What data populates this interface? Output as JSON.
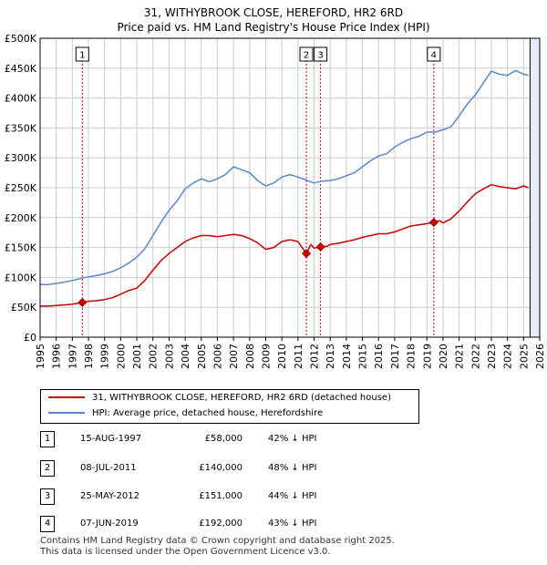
{
  "header": {
    "title_line1": "31, WITHYBROOK CLOSE, HEREFORD, HR2 6RD",
    "title_line2": "Price paid vs. HM Land Registry's House Price Index (HPI)"
  },
  "colors": {
    "property": "#cc0000",
    "hpi": "#5588cc",
    "shade": "#e4ecf7",
    "grid": "#cccccc",
    "marker": "#cc0000"
  },
  "chart_data": {
    "type": "line",
    "title": "31, WITHYBROOK CLOSE, HEREFORD, HR2 6RD",
    "subtitle": "Price paid vs. HM Land Registry's House Price Index (HPI)",
    "xlim": [
      1995,
      2026
    ],
    "ylim": [
      0,
      500000
    ],
    "x_ticks": [
      1995,
      1996,
      1997,
      1998,
      1999,
      2000,
      2001,
      2002,
      2003,
      2004,
      2005,
      2006,
      2007,
      2008,
      2009,
      2010,
      2011,
      2012,
      2013,
      2014,
      2015,
      2016,
      2017,
      2018,
      2019,
      2020,
      2021,
      2022,
      2023,
      2024,
      2025,
      2026
    ],
    "y_ticks": [
      0,
      50000,
      100000,
      150000,
      200000,
      250000,
      300000,
      350000,
      400000,
      450000,
      500000
    ],
    "y_tick_labels": [
      "£0",
      "£50K",
      "£100K",
      "£150K",
      "£200K",
      "£250K",
      "£300K",
      "£350K",
      "£400K",
      "£450K",
      "£500K"
    ],
    "grid": true,
    "future_start": 2025.4,
    "series": [
      {
        "name": "31, WITHYBROOK CLOSE, HEREFORD, HR2 6RD (detached house)",
        "x": [
          1995.0,
          1995.5,
          1996.0,
          1996.5,
          1997.0,
          1997.62,
          1998.0,
          1998.5,
          1999.0,
          1999.5,
          2000.0,
          2000.5,
          2001.0,
          2001.5,
          2002.0,
          2002.5,
          2003.0,
          2003.5,
          2004.0,
          2004.5,
          2005.0,
          2005.5,
          2006.0,
          2006.5,
          2007.0,
          2007.5,
          2008.0,
          2008.5,
          2009.0,
          2009.5,
          2010.0,
          2010.5,
          2011.0,
          2011.52,
          2011.8,
          2012.0,
          2012.4,
          2012.8,
          2013.0,
          2013.5,
          2014.0,
          2014.5,
          2015.0,
          2015.5,
          2016.0,
          2016.5,
          2017.0,
          2017.5,
          2018.0,
          2018.5,
          2019.0,
          2019.43,
          2019.8,
          2020.0,
          2020.5,
          2021.0,
          2021.5,
          2022.0,
          2022.5,
          2023.0,
          2023.5,
          2024.0,
          2024.5,
          2025.0,
          2025.3
        ],
        "values": [
          52000,
          52000,
          53000,
          54000,
          55000,
          58000,
          60000,
          61000,
          63000,
          66000,
          72000,
          78000,
          82000,
          95000,
          112000,
          128000,
          140000,
          150000,
          160000,
          166000,
          170000,
          170000,
          168000,
          170000,
          172000,
          170000,
          165000,
          158000,
          147000,
          150000,
          160000,
          163000,
          160000,
          140000,
          155000,
          149000,
          151000,
          152000,
          155000,
          157000,
          160000,
          163000,
          167000,
          170000,
          173000,
          173000,
          176000,
          181000,
          186000,
          188000,
          190000,
          192000,
          195000,
          191000,
          198000,
          211000,
          226000,
          240000,
          248000,
          255000,
          252000,
          250000,
          248000,
          253000,
          250000
        ]
      },
      {
        "name": "HPI: Average price, detached house, Herefordshire",
        "x": [
          1995.0,
          1995.5,
          1996.0,
          1996.5,
          1997.0,
          1997.5,
          1998.0,
          1998.5,
          1999.0,
          1999.5,
          2000.0,
          2000.5,
          2001.0,
          2001.5,
          2002.0,
          2002.5,
          2003.0,
          2003.5,
          2004.0,
          2004.5,
          2005.0,
          2005.5,
          2006.0,
          2006.5,
          2007.0,
          2007.5,
          2008.0,
          2008.5,
          2009.0,
          2009.5,
          2010.0,
          2010.5,
          2011.0,
          2011.5,
          2012.0,
          2012.5,
          2013.0,
          2013.5,
          2014.0,
          2014.5,
          2015.0,
          2015.5,
          2016.0,
          2016.5,
          2017.0,
          2017.5,
          2018.0,
          2018.5,
          2019.0,
          2019.5,
          2020.0,
          2020.5,
          2021.0,
          2021.5,
          2022.0,
          2022.5,
          2023.0,
          2023.5,
          2024.0,
          2024.5,
          2025.0,
          2025.3
        ],
        "values": [
          88000,
          88000,
          90000,
          92000,
          95000,
          98000,
          101000,
          103000,
          106000,
          110000,
          116000,
          124000,
          134000,
          148000,
          170000,
          192000,
          212000,
          228000,
          248000,
          258000,
          265000,
          260000,
          265000,
          272000,
          285000,
          280000,
          275000,
          262000,
          253000,
          258000,
          268000,
          272000,
          268000,
          263000,
          258000,
          261000,
          262000,
          265000,
          270000,
          275000,
          285000,
          295000,
          303000,
          307000,
          318000,
          326000,
          332000,
          336000,
          343000,
          343000,
          347000,
          352000,
          370000,
          390000,
          405000,
          425000,
          445000,
          440000,
          438000,
          446000,
          440000,
          438000
        ]
      }
    ],
    "sales": [
      {
        "num": "1",
        "x": 1997.62,
        "price": 58000
      },
      {
        "num": "2",
        "x": 2011.52,
        "price": 140000
      },
      {
        "num": "3",
        "x": 2012.4,
        "price": 151000
      },
      {
        "num": "4",
        "x": 2019.43,
        "price": 192000
      }
    ]
  },
  "legend": {
    "property_label": "31, WITHYBROOK CLOSE, HEREFORD, HR2 6RD (detached house)",
    "hpi_label": "HPI: Average price, detached house, Herefordshire"
  },
  "sales_table": [
    {
      "num": "1",
      "date": "15-AUG-1997",
      "price": "£58,000",
      "hpi": "42% ↓ HPI"
    },
    {
      "num": "2",
      "date": "08-JUL-2011",
      "price": "£140,000",
      "hpi": "48% ↓ HPI"
    },
    {
      "num": "3",
      "date": "25-MAY-2012",
      "price": "£151,000",
      "hpi": "44% ↓ HPI"
    },
    {
      "num": "4",
      "date": "07-JUN-2019",
      "price": "£192,000",
      "hpi": "43% ↓ HPI"
    }
  ],
  "footer": {
    "line1": "Contains HM Land Registry data © Crown copyright and database right 2025.",
    "line2": "This data is licensed under the Open Government Licence v3.0."
  }
}
